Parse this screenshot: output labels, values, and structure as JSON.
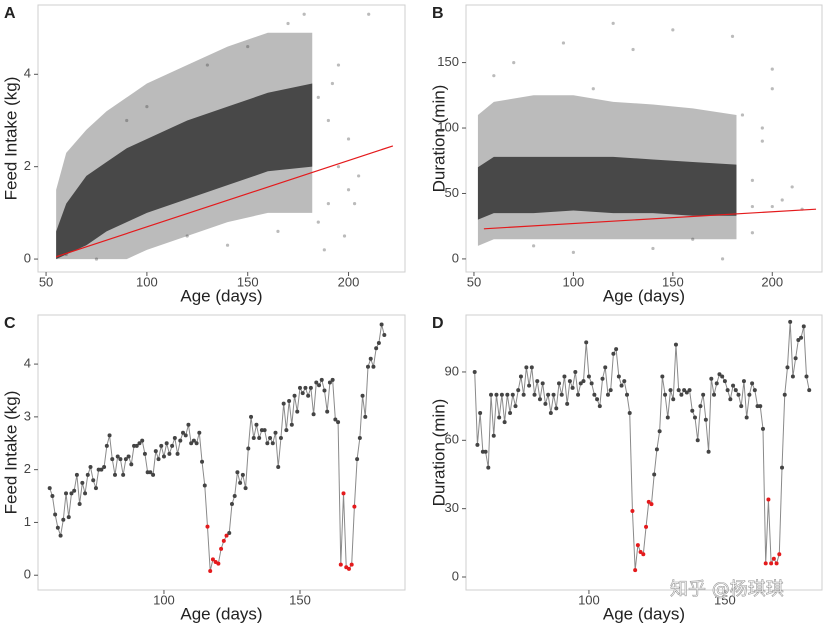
{
  "chart_data": [
    {
      "label": "A",
      "type": "scatter",
      "x_label": "Age (days)",
      "y_label": "Feed Intake (kg)",
      "color": "#3c3c3c",
      "xlim": [
        46,
        228
      ],
      "ylim": [
        -0.28,
        5.5
      ],
      "xticks": [
        50,
        100,
        150,
        200
      ],
      "yticks": [
        0,
        2,
        4
      ],
      "density": [
        {
          "opacity": 0.35,
          "x": [
            55,
            60,
            70,
            80,
            90,
            100,
            120,
            140,
            160,
            182
          ],
          "lower": [
            0,
            0,
            0,
            0,
            0,
            0.2,
            0.5,
            0.8,
            1.0,
            1.0
          ],
          "upper": [
            1.5,
            2.3,
            2.8,
            3.2,
            3.5,
            3.8,
            4.2,
            4.6,
            4.9,
            4.9
          ]
        },
        {
          "opacity": 0.9,
          "x": [
            55,
            60,
            70,
            80,
            90,
            100,
            120,
            140,
            160,
            182
          ],
          "lower": [
            0,
            0.1,
            0.3,
            0.6,
            0.8,
            1.0,
            1.3,
            1.6,
            1.9,
            2.0
          ],
          "upper": [
            0.6,
            1.2,
            1.8,
            2.1,
            2.4,
            2.6,
            3.0,
            3.3,
            3.6,
            3.8
          ]
        }
      ],
      "points": {
        "x": [
          190,
          195,
          200,
          185,
          190,
          198,
          205,
          188,
          60,
          75,
          130,
          150,
          170,
          178,
          210,
          195,
          200,
          185,
          165,
          140,
          120,
          100,
          90,
          192,
          203
        ],
        "y": [
          1.2,
          2.0,
          1.5,
          3.5,
          3.0,
          0.5,
          1.8,
          0.2,
          0.1,
          0.0,
          4.2,
          4.6,
          5.1,
          5.3,
          5.3,
          4.2,
          2.6,
          0.8,
          0.6,
          0.3,
          0.5,
          3.3,
          3.0,
          3.8,
          1.2
        ]
      },
      "fit": {
        "color": "#e41a1c",
        "x": [
          55,
          222
        ],
        "y": [
          0.05,
          2.45
        ]
      }
    },
    {
      "label": "B",
      "type": "scatter",
      "x_label": "Age (days)",
      "y_label": "Duration (min)",
      "color": "#3c3c3c",
      "xlim": [
        46,
        225
      ],
      "ylim": [
        -10,
        194
      ],
      "xticks": [
        50,
        100,
        150,
        200
      ],
      "yticks": [
        0,
        50,
        100,
        150
      ],
      "density": [
        {
          "opacity": 0.35,
          "x": [
            52,
            60,
            80,
            100,
            120,
            140,
            160,
            182
          ],
          "lower": [
            10,
            15,
            15,
            15,
            15,
            15,
            15,
            15
          ],
          "upper": [
            110,
            120,
            125,
            125,
            120,
            118,
            115,
            110
          ]
        },
        {
          "opacity": 0.9,
          "x": [
            52,
            60,
            80,
            100,
            120,
            140,
            160,
            182
          ],
          "lower": [
            30,
            35,
            35,
            37,
            35,
            35,
            33,
            33
          ],
          "upper": [
            70,
            78,
            78,
            78,
            78,
            76,
            74,
            72
          ]
        }
      ],
      "points": {
        "x": [
          200,
          205,
          190,
          195,
          200,
          210,
          190,
          70,
          95,
          120,
          130,
          150,
          180,
          200,
          185,
          195,
          60,
          80,
          100,
          140,
          160,
          175,
          190,
          215,
          110
        ],
        "y": [
          40,
          45,
          60,
          90,
          130,
          55,
          20,
          150,
          165,
          180,
          160,
          175,
          170,
          145,
          110,
          100,
          140,
          10,
          5,
          8,
          15,
          0,
          40,
          38,
          130
        ]
      },
      "fit": {
        "color": "#e41a1c",
        "x": [
          55,
          222
        ],
        "y": [
          23,
          38
        ]
      }
    },
    {
      "label": "C",
      "type": "line",
      "x_label": "Age (days)",
      "y_label": "Feed Intake (kg)",
      "color": "#444444",
      "line_color": "#8a8a8a",
      "xlim": [
        53.7,
        188.6
      ],
      "ylim": [
        -0.28,
        4.93
      ],
      "xticks": [
        100,
        150
      ],
      "yticks": [
        0,
        1,
        2,
        3,
        4
      ],
      "highlight": {
        "color": "#e41a1c",
        "ranges": [
          [
            116,
            123
          ],
          [
            165,
            170
          ]
        ]
      },
      "x": [
        58,
        59,
        60,
        61,
        62,
        63,
        64,
        65,
        66,
        67,
        68,
        69,
        70,
        71,
        72,
        73,
        74,
        75,
        76,
        77,
        78,
        79,
        80,
        81,
        82,
        83,
        84,
        85,
        86,
        87,
        88,
        89,
        90,
        91,
        92,
        93,
        94,
        95,
        96,
        97,
        98,
        99,
        100,
        101,
        102,
        103,
        104,
        105,
        106,
        107,
        108,
        109,
        110,
        111,
        112,
        113,
        114,
        115,
        116,
        117,
        118,
        119,
        120,
        121,
        122,
        123,
        124,
        125,
        126,
        127,
        128,
        129,
        130,
        131,
        132,
        133,
        134,
        135,
        136,
        137,
        138,
        139,
        140,
        141,
        142,
        143,
        144,
        145,
        146,
        147,
        148,
        149,
        150,
        151,
        152,
        153,
        154,
        155,
        156,
        157,
        158,
        159,
        160,
        161,
        162,
        163,
        164,
        165,
        166,
        167,
        168,
        169,
        170,
        171,
        172,
        173,
        174,
        175,
        176,
        177,
        178,
        179,
        180,
        181
      ],
      "values": [
        1.65,
        1.5,
        1.15,
        0.9,
        0.75,
        1.05,
        1.55,
        1.1,
        1.55,
        1.6,
        1.9,
        1.35,
        1.75,
        1.55,
        1.9,
        2.05,
        1.8,
        1.65,
        2.0,
        2.0,
        2.05,
        2.45,
        2.65,
        2.2,
        1.9,
        2.25,
        2.2,
        1.9,
        2.2,
        2.25,
        2.1,
        2.45,
        2.45,
        2.5,
        2.55,
        2.3,
        1.95,
        1.95,
        1.9,
        2.35,
        2.2,
        2.45,
        2.25,
        2.5,
        2.3,
        2.45,
        2.6,
        2.3,
        2.55,
        2.7,
        2.65,
        2.85,
        2.5,
        2.55,
        2.5,
        2.7,
        2.15,
        1.7,
        0.92,
        0.08,
        0.3,
        0.25,
        0.22,
        0.5,
        0.65,
        0.75,
        0.8,
        1.35,
        1.5,
        1.95,
        1.75,
        1.9,
        1.65,
        2.4,
        3.0,
        2.6,
        2.85,
        2.6,
        2.75,
        2.75,
        2.5,
        2.6,
        2.5,
        2.7,
        2.05,
        2.6,
        3.25,
        2.75,
        3.3,
        2.85,
        3.4,
        3.1,
        3.55,
        3.45,
        3.55,
        3.4,
        3.55,
        3.05,
        3.65,
        3.6,
        3.7,
        3.5,
        3.1,
        3.65,
        3.7,
        2.95,
        2.9,
        0.2,
        1.55,
        0.15,
        0.12,
        0.2,
        1.3,
        2.2,
        2.6,
        3.4,
        3.0,
        3.95,
        4.1,
        3.95,
        4.3,
        4.4,
        4.75,
        4.55
      ]
    },
    {
      "label": "D",
      "type": "line",
      "x_label": "Age (days)",
      "y_label": "Duration (min)",
      "color": "#444444",
      "line_color": "#8a8a8a",
      "xlim": [
        54.8,
        185.7
      ],
      "ylim": [
        -5.7,
        115
      ],
      "xticks": [
        100,
        150
      ],
      "yticks": [
        0,
        30,
        60,
        90
      ],
      "highlight": {
        "color": "#e41a1c",
        "ranges": [
          [
            116,
            123
          ],
          [
            165,
            170
          ]
        ]
      },
      "x": [
        58,
        59,
        60,
        61,
        62,
        63,
        64,
        65,
        66,
        67,
        68,
        69,
        70,
        71,
        72,
        73,
        74,
        75,
        76,
        77,
        78,
        79,
        80,
        81,
        82,
        83,
        84,
        85,
        86,
        87,
        88,
        89,
        90,
        91,
        92,
        93,
        94,
        95,
        96,
        97,
        98,
        99,
        100,
        101,
        102,
        103,
        104,
        105,
        106,
        107,
        108,
        109,
        110,
        111,
        112,
        113,
        114,
        115,
        116,
        117,
        118,
        119,
        120,
        121,
        122,
        123,
        124,
        125,
        126,
        127,
        128,
        129,
        130,
        131,
        132,
        133,
        134,
        135,
        136,
        137,
        138,
        139,
        140,
        141,
        142,
        143,
        144,
        145,
        146,
        147,
        148,
        149,
        150,
        151,
        152,
        153,
        154,
        155,
        156,
        157,
        158,
        159,
        160,
        161,
        162,
        163,
        164,
        165,
        166,
        167,
        168,
        169,
        170,
        171,
        172,
        173,
        174,
        175,
        176,
        177,
        178,
        179,
        180,
        181
      ],
      "values": [
        90,
        58,
        72,
        55,
        55,
        48,
        80,
        62,
        80,
        70,
        80,
        68,
        80,
        72,
        80,
        75,
        82,
        88,
        80,
        92,
        84,
        92,
        80,
        86,
        78,
        85,
        76,
        80,
        72,
        80,
        74,
        85,
        80,
        88,
        76,
        86,
        83,
        90,
        80,
        85,
        86,
        103,
        88,
        85,
        80,
        78,
        75,
        87,
        92,
        80,
        82,
        98,
        100,
        88,
        84,
        86,
        80,
        72,
        29,
        3,
        14,
        11,
        10,
        22,
        33,
        32,
        45,
        56,
        64,
        88,
        80,
        70,
        82,
        78,
        102,
        82,
        80,
        82,
        81,
        82,
        73,
        70,
        60,
        75,
        80,
        69,
        55,
        87,
        80,
        85,
        89,
        88,
        86,
        82,
        78,
        84,
        82,
        80,
        75,
        86,
        70,
        80,
        85,
        82,
        75,
        75,
        65,
        6,
        34,
        6,
        8,
        6,
        10,
        48,
        80,
        92,
        112,
        88,
        96,
        104,
        105,
        110,
        88,
        82
      ]
    }
  ],
  "watermark": "知乎 @杨琪琪"
}
